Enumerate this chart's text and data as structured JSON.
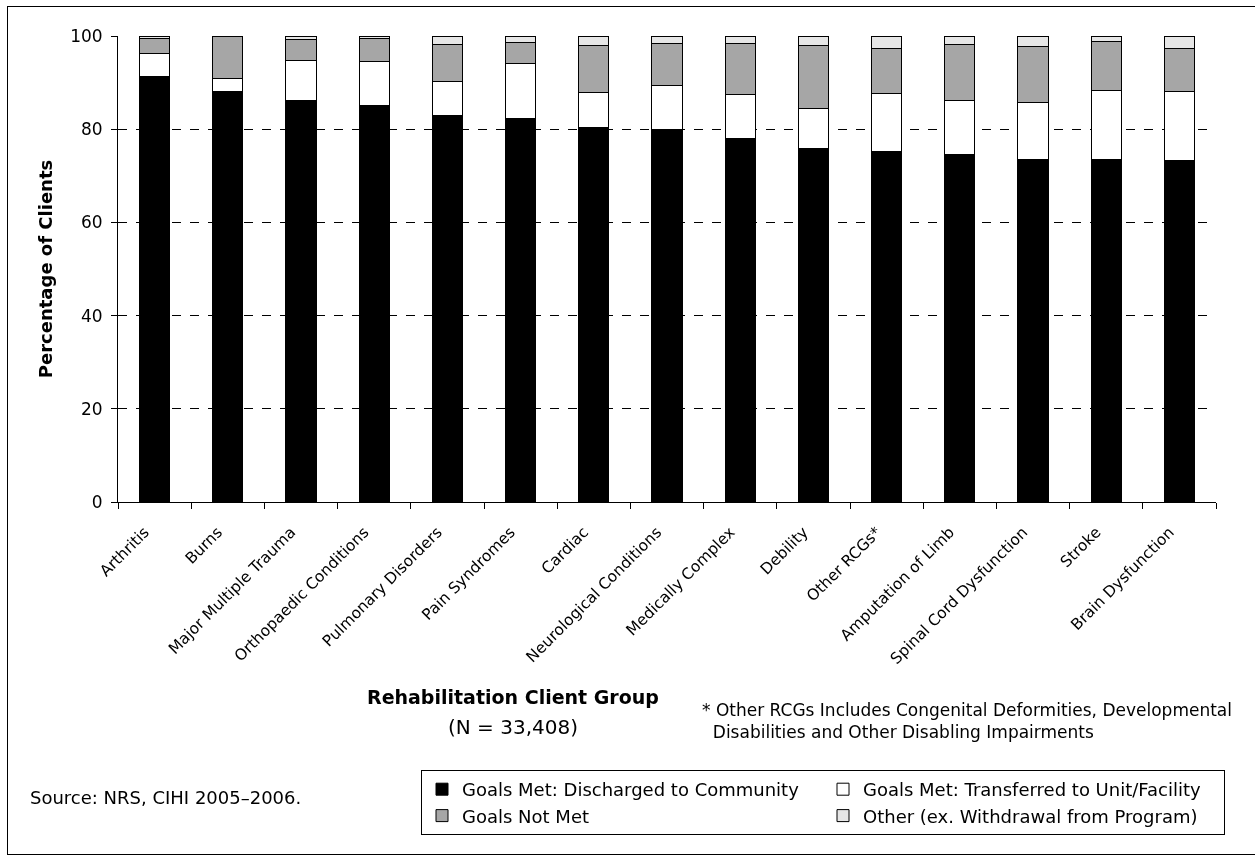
{
  "chart_data": {
    "type": "bar",
    "stacked": true,
    "categories": [
      "Arthritis",
      "Burns",
      "Major Multiple Trauma",
      "Orthopaedic Conditions",
      "Pulmonary Disorders",
      "Pain Syndromes",
      "Cardiac",
      "Neurological Conditions",
      "Medically Complex",
      "Debility",
      "Other RCGs*",
      "Amputation of Limb",
      "Spinal Cord Dysfunction",
      "Stroke",
      "Brain Dysfunction"
    ],
    "xlabel": "Rehabilitation Client Group",
    "ylabel": "Percentage of Clients",
    "series": [
      {
        "name": "Goals Met: Discharged to Community",
        "color": "#000000",
        "values": [
          91.3,
          88.0,
          86.2,
          85.1,
          83.0,
          82.2,
          80.3,
          79.9,
          77.9,
          75.9,
          75.2,
          74.5,
          73.5,
          73.4,
          73.3
        ]
      },
      {
        "name": "Goals Met: Transferred to Unit/Facility",
        "color": "#ffffff",
        "values": [
          4.9,
          2.9,
          8.5,
          9.4,
          7.2,
          11.8,
          7.6,
          9.5,
          9.5,
          8.5,
          12.5,
          11.6,
          12.2,
          14.8,
          14.8
        ]
      },
      {
        "name": "Goals Not Met",
        "color": "#a6a6a6",
        "values": [
          3.2,
          9.1,
          4.6,
          5.0,
          7.9,
          4.7,
          10.0,
          9.0,
          11.0,
          13.6,
          9.6,
          12.0,
          12.1,
          10.7,
          9.3
        ]
      },
      {
        "name": "Other (ex. Withdrawal from Program)",
        "color": "#e6e6e6",
        "values": [
          0.6,
          0.0,
          0.7,
          0.5,
          1.9,
          1.3,
          2.1,
          1.6,
          1.6,
          2.0,
          2.7,
          1.9,
          2.2,
          1.1,
          2.6
        ]
      }
    ],
    "ylim": [
      0,
      100
    ],
    "yticks": [
      0,
      20,
      40,
      60,
      80,
      100
    ],
    "grid": "y",
    "legend": "bottom right",
    "annotations": [
      "(N = 33,408)",
      "* Other RCGs Includes Congenital Deformities, Developmental\nDisabilities and Other Disabling Impairments",
      "Source: NRS, CIHI 2005–2006."
    ]
  }
}
